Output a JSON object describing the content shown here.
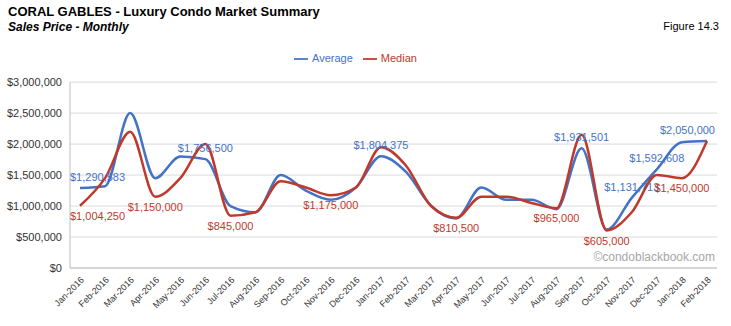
{
  "chart_data": {
    "type": "line",
    "title": "CORAL GABLES - Luxury Condo Market Summary",
    "subtitle": "Sales Price - Monthly",
    "annotations": [
      "Figure 14.3",
      "©condoblackbook.com"
    ],
    "categories": [
      "Jan-2016",
      "Feb-2016",
      "Mar-2016",
      "Apr-2016",
      "May-2016",
      "Jun-2016",
      "Jul-2016",
      "Aug-2016",
      "Sep-2016",
      "Oct-2016",
      "Nov-2016",
      "Dec-2016",
      "Jan-2017",
      "Feb-2017",
      "Mar-2017",
      "Apr-2017",
      "May-2017",
      "Jun-2017",
      "Jul-2017",
      "Aug-2017",
      "Sep-2017",
      "Oct-2017",
      "Nov-2017",
      "Dec-2017",
      "Jan-2018",
      "Feb-2018"
    ],
    "series": [
      {
        "name": "Average",
        "color": "#4472C4",
        "values": [
          1290583,
          1320000,
          2500000,
          1450000,
          1800000,
          1756500,
          1000000,
          900000,
          1500000,
          1250000,
          1100000,
          1300000,
          1804375,
          1550000,
          1000000,
          800000,
          1300000,
          1100000,
          1100000,
          950000,
          1931501,
          620000,
          1131713,
          1592608,
          2030000,
          2050000
        ],
        "value_labels": [
          "$1,290,583",
          null,
          null,
          null,
          null,
          "$1,756,500",
          null,
          null,
          null,
          null,
          null,
          null,
          "$1,804,375",
          null,
          null,
          null,
          null,
          null,
          null,
          null,
          "$1,931,501",
          null,
          "$1,131,713",
          "$1,592,608",
          null,
          "$2,050,000"
        ]
      },
      {
        "name": "Median",
        "color": "#C0392B",
        "values": [
          1004250,
          1450000,
          2200000,
          1150000,
          1450000,
          2000000,
          845000,
          900000,
          1400000,
          1300000,
          1175000,
          1300000,
          1950000,
          1650000,
          1000000,
          810500,
          1150000,
          1150000,
          1050000,
          965000,
          2150000,
          605000,
          900000,
          1500000,
          1450000,
          2050000
        ],
        "value_labels": [
          "$1,004,250",
          null,
          null,
          "$1,150,000",
          null,
          null,
          "$845,000",
          null,
          null,
          null,
          "$1,175,000",
          null,
          null,
          null,
          null,
          "$810,500",
          null,
          null,
          null,
          "$965,000",
          null,
          "$605,000",
          null,
          null,
          "$1,450,000",
          null
        ]
      }
    ],
    "ylim": [
      0,
      3000000
    ],
    "yticks": [
      {
        "value": 0,
        "label": "$0"
      },
      {
        "value": 500000,
        "label": "$500,000"
      },
      {
        "value": 1000000,
        "label": "$1,000,000"
      },
      {
        "value": 1500000,
        "label": "$1,500,000"
      },
      {
        "value": 2000000,
        "label": "$2,000,000"
      },
      {
        "value": 2500000,
        "label": "$2,500,000"
      },
      {
        "value": 3000000,
        "label": "$3,000,000"
      }
    ],
    "grid": true,
    "legend": "top",
    "data_labels": true
  }
}
